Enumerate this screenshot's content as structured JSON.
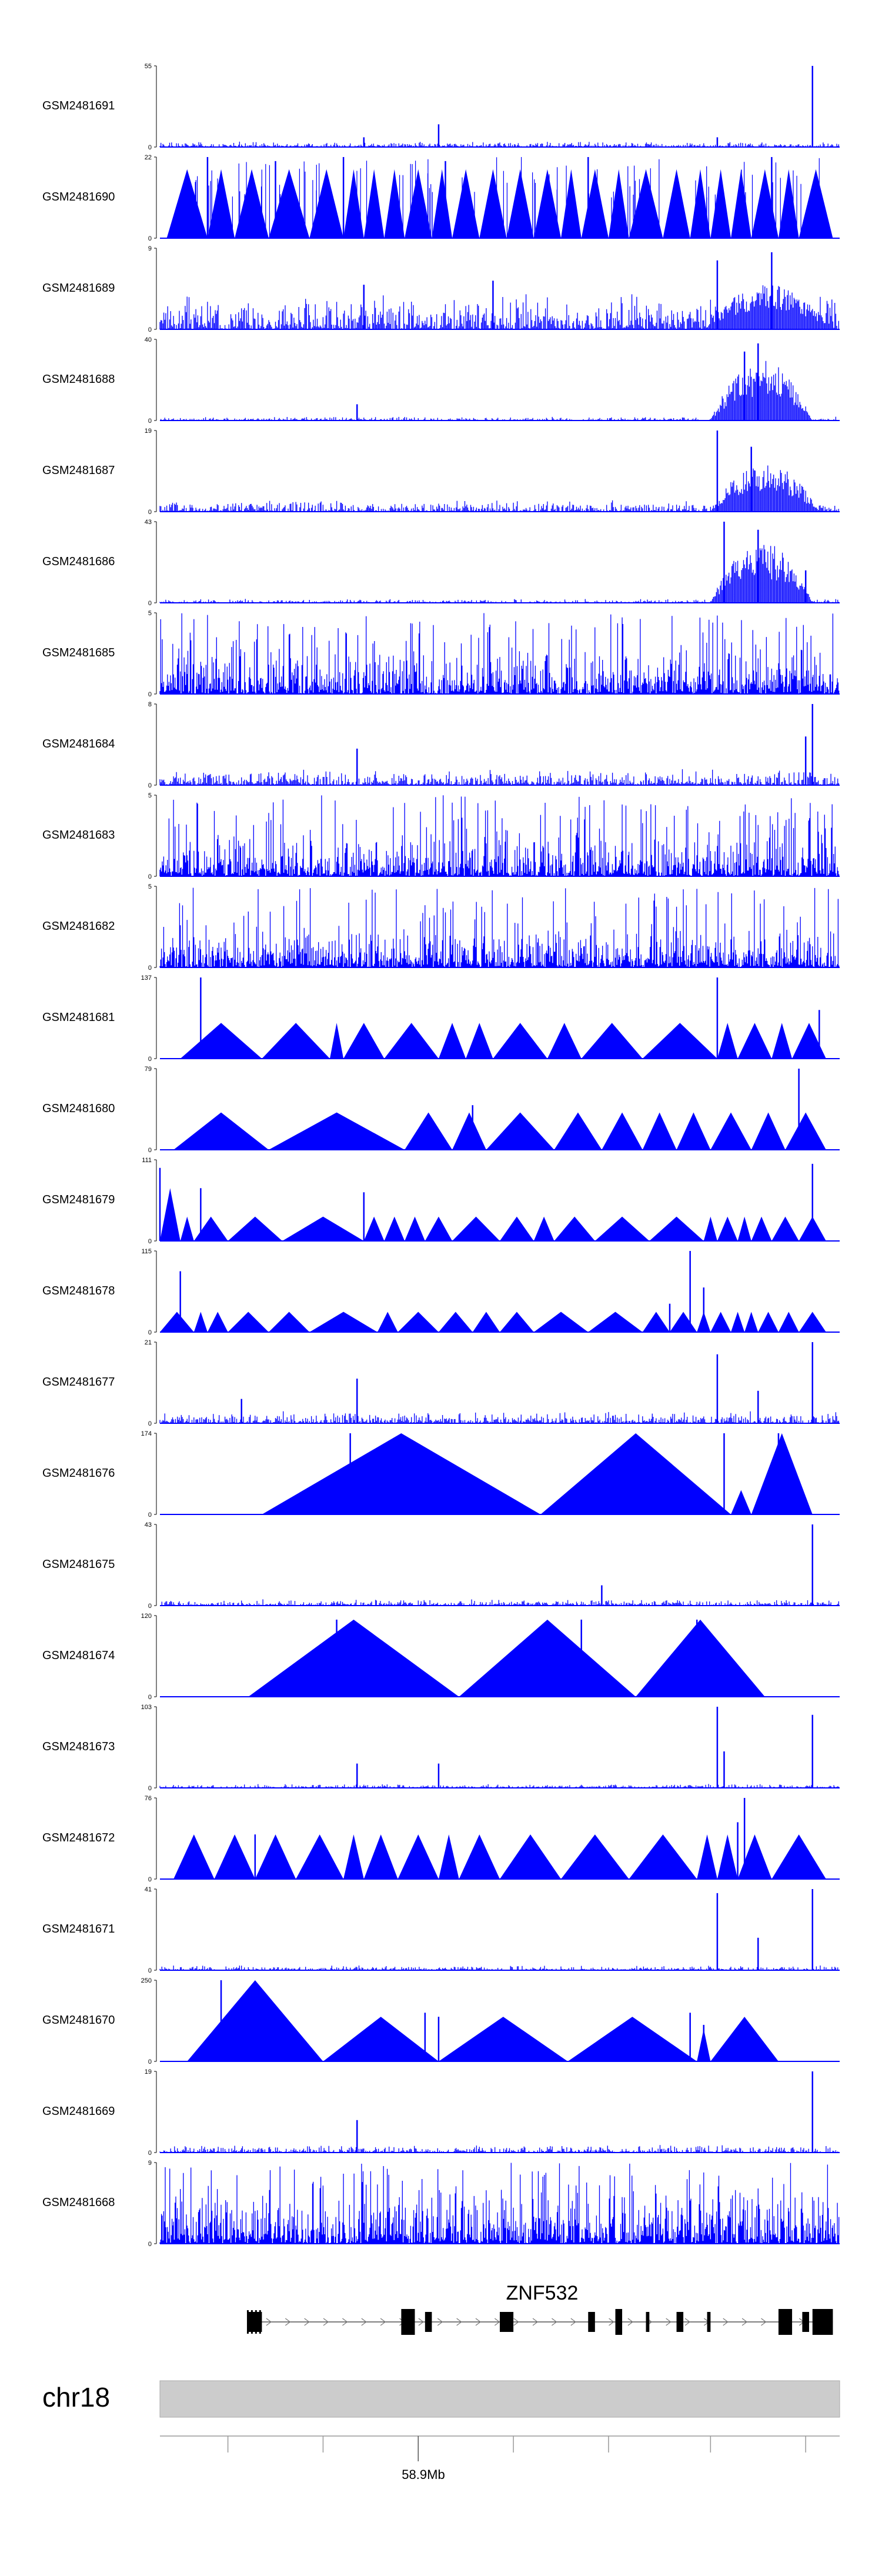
{
  "chart_data": {
    "type": "area",
    "title": "",
    "colors": {
      "signal": "#0000ff",
      "axis": "#000000",
      "ideogram": "#cccccc",
      "gene": "#000000"
    },
    "tracks": [
      {
        "name": "GSM2481691",
        "ymax": "55",
        "ymin": "0",
        "style": "noise",
        "amp": 0.07,
        "seed": 1,
        "peaks": [
          [
            0.3,
            0.12
          ],
          [
            0.41,
            0.28
          ],
          [
            0.82,
            0.12
          ],
          [
            0.96,
            1.0
          ]
        ]
      },
      {
        "name": "GSM2481690",
        "ymax": "22",
        "ymin": "0",
        "style": "spiky-tri",
        "seed": 2,
        "tris": [
          [
            0.01,
            0.07
          ],
          [
            0.07,
            0.11
          ],
          [
            0.11,
            0.16
          ],
          [
            0.16,
            0.22
          ],
          [
            0.22,
            0.27
          ],
          [
            0.27,
            0.3
          ],
          [
            0.3,
            0.33
          ],
          [
            0.33,
            0.36
          ],
          [
            0.36,
            0.4
          ],
          [
            0.4,
            0.43
          ],
          [
            0.43,
            0.47
          ],
          [
            0.47,
            0.51
          ],
          [
            0.51,
            0.55
          ],
          [
            0.55,
            0.59
          ],
          [
            0.59,
            0.62
          ],
          [
            0.62,
            0.66
          ],
          [
            0.66,
            0.69
          ],
          [
            0.69,
            0.74
          ],
          [
            0.74,
            0.78
          ],
          [
            0.78,
            0.81
          ],
          [
            0.81,
            0.84
          ],
          [
            0.84,
            0.87
          ],
          [
            0.87,
            0.91
          ],
          [
            0.91,
            0.94
          ],
          [
            0.94,
            0.99
          ]
        ],
        "peaks": [
          [
            0.07,
            1.0
          ],
          [
            0.17,
            0.95
          ],
          [
            0.27,
            1.0
          ],
          [
            0.42,
            0.95
          ],
          [
            0.63,
            1.0
          ],
          [
            0.9,
            1.0
          ]
        ]
      },
      {
        "name": "GSM2481689",
        "ymax": "9",
        "ymin": "0",
        "style": "noise",
        "amp": 0.45,
        "seed": 3,
        "hump": [
          0.8,
          0.99,
          0.55
        ],
        "peaks": [
          [
            0.3,
            0.55
          ],
          [
            0.49,
            0.6
          ],
          [
            0.82,
            0.85
          ],
          [
            0.9,
            0.95
          ]
        ]
      },
      {
        "name": "GSM2481688",
        "ymax": "40",
        "ymin": "0",
        "style": "noise",
        "amp": 0.05,
        "seed": 4,
        "hump": [
          0.81,
          0.96,
          0.75
        ],
        "peaks": [
          [
            0.29,
            0.2
          ],
          [
            0.88,
            0.95
          ],
          [
            0.86,
            0.85
          ]
        ]
      },
      {
        "name": "GSM2481687",
        "ymax": "19",
        "ymin": "0",
        "style": "noise",
        "amp": 0.15,
        "seed": 5,
        "hump": [
          0.81,
          0.97,
          0.6
        ],
        "peaks": [
          [
            0.82,
            1.0
          ],
          [
            0.87,
            0.8
          ]
        ]
      },
      {
        "name": "GSM2481686",
        "ymax": "43",
        "ymin": "0",
        "style": "noise",
        "amp": 0.05,
        "seed": 6,
        "hump": [
          0.81,
          0.96,
          0.75
        ],
        "peaks": [
          [
            0.83,
            1.0
          ],
          [
            0.88,
            0.9
          ],
          [
            0.95,
            0.4
          ]
        ]
      },
      {
        "name": "GSM2481685",
        "ymax": "5",
        "ymin": "0",
        "style": "dense",
        "amp": 0.55,
        "seed": 7,
        "peaks": []
      },
      {
        "name": "GSM2481684",
        "ymax": "8",
        "ymin": "0",
        "style": "noise",
        "amp": 0.2,
        "seed": 8,
        "peaks": [
          [
            0.29,
            0.45
          ],
          [
            0.96,
            1.0
          ],
          [
            0.95,
            0.6
          ]
        ]
      },
      {
        "name": "GSM2481683",
        "ymax": "5",
        "ymin": "0",
        "style": "dense",
        "amp": 0.5,
        "seed": 9,
        "peaks": []
      },
      {
        "name": "GSM2481682",
        "ymax": "5",
        "ymin": "0",
        "style": "dense",
        "amp": 0.5,
        "seed": 10,
        "peaks": []
      },
      {
        "name": "GSM2481681",
        "ymax": "137",
        "ymin": "0",
        "style": "tri",
        "tris": [
          [
            0.03,
            0.15,
            0.44
          ],
          [
            0.15,
            0.25,
            0.44
          ],
          [
            0.25,
            0.27,
            0.44
          ],
          [
            0.27,
            0.33,
            0.44
          ],
          [
            0.33,
            0.41,
            0.44
          ],
          [
            0.41,
            0.45,
            0.44
          ],
          [
            0.45,
            0.49,
            0.44
          ],
          [
            0.49,
            0.57,
            0.44
          ],
          [
            0.57,
            0.62,
            0.44
          ],
          [
            0.62,
            0.71,
            0.44
          ],
          [
            0.71,
            0.82,
            0.44
          ],
          [
            0.82,
            0.85,
            0.44
          ],
          [
            0.85,
            0.9,
            0.44
          ],
          [
            0.9,
            0.93,
            0.44
          ],
          [
            0.93,
            0.98,
            0.44
          ]
        ],
        "peaks": [
          [
            0.06,
            1.0
          ],
          [
            0.82,
            1.0
          ],
          [
            0.97,
            0.6
          ]
        ]
      },
      {
        "name": "GSM2481680",
        "ymax": "79",
        "ymin": "0",
        "style": "tri",
        "tris": [
          [
            0.02,
            0.16,
            0.46
          ],
          [
            0.16,
            0.36,
            0.46
          ],
          [
            0.36,
            0.43,
            0.46
          ],
          [
            0.43,
            0.48,
            0.46
          ],
          [
            0.48,
            0.58,
            0.46
          ],
          [
            0.58,
            0.65,
            0.46
          ],
          [
            0.65,
            0.71,
            0.46
          ],
          [
            0.71,
            0.76,
            0.46
          ],
          [
            0.76,
            0.81,
            0.46
          ],
          [
            0.81,
            0.87,
            0.46
          ],
          [
            0.87,
            0.92,
            0.46
          ],
          [
            0.92,
            0.98,
            0.46
          ]
        ],
        "peaks": [
          [
            0.46,
            0.55
          ],
          [
            0.94,
            1.0
          ]
        ]
      },
      {
        "name": "GSM2481679",
        "ymax": "111",
        "ymin": "0",
        "style": "tri",
        "tris": [
          [
            0.0,
            0.03,
            0.65
          ],
          [
            0.03,
            0.05,
            0.3
          ],
          [
            0.05,
            0.1,
            0.3
          ],
          [
            0.1,
            0.18,
            0.3
          ],
          [
            0.18,
            0.3,
            0.3
          ],
          [
            0.3,
            0.33,
            0.3
          ],
          [
            0.33,
            0.36,
            0.3
          ],
          [
            0.36,
            0.39,
            0.3
          ],
          [
            0.39,
            0.43,
            0.3
          ],
          [
            0.43,
            0.5,
            0.3
          ],
          [
            0.5,
            0.55,
            0.3
          ],
          [
            0.55,
            0.58,
            0.3
          ],
          [
            0.58,
            0.64,
            0.3
          ],
          [
            0.64,
            0.72,
            0.3
          ],
          [
            0.72,
            0.8,
            0.3
          ],
          [
            0.8,
            0.82,
            0.3
          ],
          [
            0.82,
            0.85,
            0.3
          ],
          [
            0.85,
            0.87,
            0.3
          ],
          [
            0.87,
            0.9,
            0.3
          ],
          [
            0.9,
            0.94,
            0.3
          ],
          [
            0.94,
            0.98,
            0.3
          ]
        ],
        "peaks": [
          [
            0.0,
            0.9
          ],
          [
            0.06,
            0.65
          ],
          [
            0.3,
            0.6
          ],
          [
            0.96,
            0.95
          ]
        ]
      },
      {
        "name": "GSM2481678",
        "ymax": "115",
        "ymin": "0",
        "style": "tri",
        "tris": [
          [
            0.0,
            0.05,
            0.25
          ],
          [
            0.05,
            0.07,
            0.25
          ],
          [
            0.07,
            0.1,
            0.25
          ],
          [
            0.1,
            0.16,
            0.25
          ],
          [
            0.16,
            0.22,
            0.25
          ],
          [
            0.22,
            0.32,
            0.25
          ],
          [
            0.32,
            0.35,
            0.25
          ],
          [
            0.35,
            0.41,
            0.25
          ],
          [
            0.41,
            0.46,
            0.25
          ],
          [
            0.46,
            0.5,
            0.25
          ],
          [
            0.5,
            0.55,
            0.25
          ],
          [
            0.55,
            0.63,
            0.25
          ],
          [
            0.63,
            0.71,
            0.25
          ],
          [
            0.71,
            0.75,
            0.25
          ],
          [
            0.75,
            0.79,
            0.25
          ],
          [
            0.79,
            0.81,
            0.25
          ],
          [
            0.81,
            0.84,
            0.25
          ],
          [
            0.84,
            0.86,
            0.25
          ],
          [
            0.86,
            0.88,
            0.25
          ],
          [
            0.88,
            0.91,
            0.25
          ],
          [
            0.91,
            0.94,
            0.25
          ],
          [
            0.94,
            0.98,
            0.25
          ]
        ],
        "peaks": [
          [
            0.03,
            0.75
          ],
          [
            0.75,
            0.35
          ],
          [
            0.78,
            1.0
          ],
          [
            0.8,
            0.55
          ]
        ]
      },
      {
        "name": "GSM2481677",
        "ymax": "21",
        "ymin": "0",
        "style": "noise",
        "amp": 0.15,
        "seed": 11,
        "peaks": [
          [
            0.12,
            0.3
          ],
          [
            0.29,
            0.55
          ],
          [
            0.82,
            0.85
          ],
          [
            0.88,
            0.4
          ],
          [
            0.96,
            1.0
          ]
        ]
      },
      {
        "name": "GSM2481676",
        "ymax": "174",
        "ymin": "0",
        "style": "tri",
        "tris": [
          [
            0.15,
            0.56,
            1.0
          ],
          [
            0.56,
            0.84,
            1.0
          ],
          [
            0.84,
            0.87,
            0.3
          ],
          [
            0.87,
            0.96,
            1.0
          ]
        ],
        "peaks": [
          [
            0.28,
            1.0
          ],
          [
            0.83,
            1.0
          ],
          [
            0.91,
            1.0
          ]
        ]
      },
      {
        "name": "GSM2481675",
        "ymax": "43",
        "ymin": "0",
        "style": "noise",
        "amp": 0.08,
        "seed": 12,
        "peaks": [
          [
            0.65,
            0.25
          ],
          [
            0.96,
            1.0
          ]
        ]
      },
      {
        "name": "GSM2481674",
        "ymax": "120",
        "ymin": "0",
        "style": "tri",
        "tris": [
          [
            0.13,
            0.44,
            0.95
          ],
          [
            0.44,
            0.7,
            0.95
          ],
          [
            0.7,
            0.89,
            0.95
          ]
        ],
        "peaks": [
          [
            0.26,
            0.95
          ],
          [
            0.62,
            0.95
          ],
          [
            0.79,
            0.95
          ]
        ]
      },
      {
        "name": "GSM2481673",
        "ymax": "103",
        "ymin": "0",
        "style": "noise",
        "amp": 0.05,
        "seed": 13,
        "peaks": [
          [
            0.29,
            0.3
          ],
          [
            0.41,
            0.3
          ],
          [
            0.82,
            1.0
          ],
          [
            0.83,
            0.45
          ],
          [
            0.96,
            0.9
          ]
        ]
      },
      {
        "name": "GSM2481672",
        "ymax": "76",
        "ymin": "0",
        "style": "tri",
        "tris": [
          [
            0.02,
            0.08,
            0.55
          ],
          [
            0.08,
            0.14,
            0.55
          ],
          [
            0.14,
            0.2,
            0.55
          ],
          [
            0.2,
            0.27,
            0.55
          ],
          [
            0.27,
            0.3,
            0.55
          ],
          [
            0.3,
            0.35,
            0.55
          ],
          [
            0.35,
            0.41,
            0.55
          ],
          [
            0.41,
            0.44,
            0.55
          ],
          [
            0.44,
            0.5,
            0.55
          ],
          [
            0.5,
            0.59,
            0.55
          ],
          [
            0.59,
            0.69,
            0.55
          ],
          [
            0.69,
            0.79,
            0.55
          ],
          [
            0.79,
            0.82,
            0.55
          ],
          [
            0.82,
            0.85,
            0.55
          ],
          [
            0.85,
            0.9,
            0.55
          ],
          [
            0.9,
            0.98,
            0.55
          ]
        ],
        "peaks": [
          [
            0.14,
            0.55
          ],
          [
            0.86,
            1.0
          ],
          [
            0.85,
            0.7
          ]
        ]
      },
      {
        "name": "GSM2481671",
        "ymax": "41",
        "ymin": "0",
        "style": "noise",
        "amp": 0.06,
        "seed": 14,
        "peaks": [
          [
            0.82,
            0.95
          ],
          [
            0.88,
            0.4
          ],
          [
            0.96,
            1.0
          ]
        ]
      },
      {
        "name": "GSM2481670",
        "ymax": "250",
        "ymin": "0",
        "style": "tri",
        "tris": [
          [
            0.04,
            0.24,
            1.0
          ],
          [
            0.24,
            0.41,
            0.55
          ],
          [
            0.41,
            0.6,
            0.55
          ],
          [
            0.6,
            0.79,
            0.55
          ],
          [
            0.79,
            0.81,
            0.4
          ],
          [
            0.81,
            0.91,
            0.55
          ]
        ],
        "peaks": [
          [
            0.09,
            1.0
          ],
          [
            0.39,
            0.6
          ],
          [
            0.41,
            0.55
          ],
          [
            0.78,
            0.6
          ],
          [
            0.8,
            0.45
          ]
        ]
      },
      {
        "name": "GSM2481669",
        "ymax": "19",
        "ymin": "0",
        "style": "noise",
        "amp": 0.1,
        "seed": 15,
        "peaks": [
          [
            0.29,
            0.4
          ],
          [
            0.96,
            1.0
          ]
        ]
      },
      {
        "name": "GSM2481668",
        "ymax": "9",
        "ymin": "0",
        "style": "dense",
        "amp": 0.7,
        "seed": 16,
        "peaks": []
      }
    ],
    "gene": {
      "name": "ZNF532",
      "exons": [
        [
          0.13,
          0.15,
          "half"
        ],
        [
          0.355,
          0.375,
          "full"
        ],
        [
          0.39,
          0.4,
          "half"
        ],
        [
          0.5,
          0.52,
          "half"
        ],
        [
          0.63,
          0.64,
          "half"
        ],
        [
          0.67,
          0.68,
          "full"
        ],
        [
          0.715,
          0.72,
          "half"
        ],
        [
          0.76,
          0.77,
          "half"
        ],
        [
          0.805,
          0.81,
          "half"
        ],
        [
          0.91,
          0.93,
          "full"
        ],
        [
          0.945,
          0.955,
          "half"
        ],
        [
          0.96,
          0.99,
          "full"
        ]
      ],
      "start": 0.13,
      "end": 0.99
    },
    "chromosome": {
      "name": "chr18",
      "ticks": [
        0.1,
        0.24,
        0.38,
        0.52,
        0.66,
        0.81,
        0.95
      ],
      "labeled_tick_index": 2,
      "position_label": "58.9Mb"
    }
  }
}
